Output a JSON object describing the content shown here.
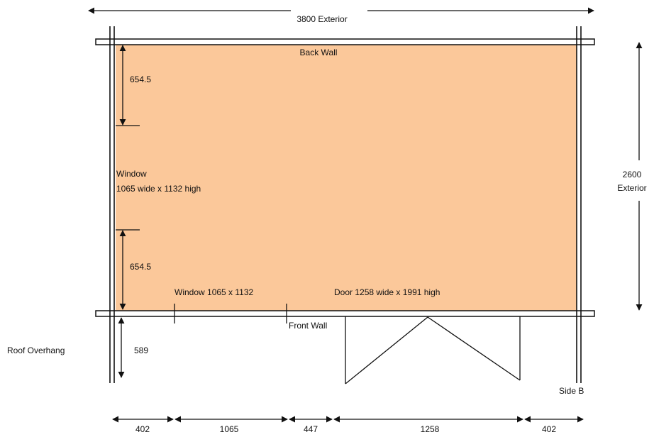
{
  "colors": {
    "floor_fill": "#FBC89A",
    "line": "#111111",
    "background": "#FFFFFF"
  },
  "labels": {
    "top_dimension": "3800 Exterior",
    "back_wall": "Back Wall",
    "front_wall": "Front Wall",
    "side_b": "Side B",
    "roof_overhang": "Roof Overhang",
    "right_dimension_value": "2600",
    "right_dimension_unit": "Exterior",
    "side_window_line1": "Window",
    "side_window_line2": "1065 wide x 1132 high",
    "upper_gap": "654.5",
    "lower_gap": "654.5",
    "overhang_depth": "589",
    "front_window": "Window 1065 x 1132",
    "door": "Door 1258 wide  x 1991 high"
  },
  "bottom_dimensions": [
    "402",
    "1065",
    "447",
    "1258",
    "402"
  ]
}
